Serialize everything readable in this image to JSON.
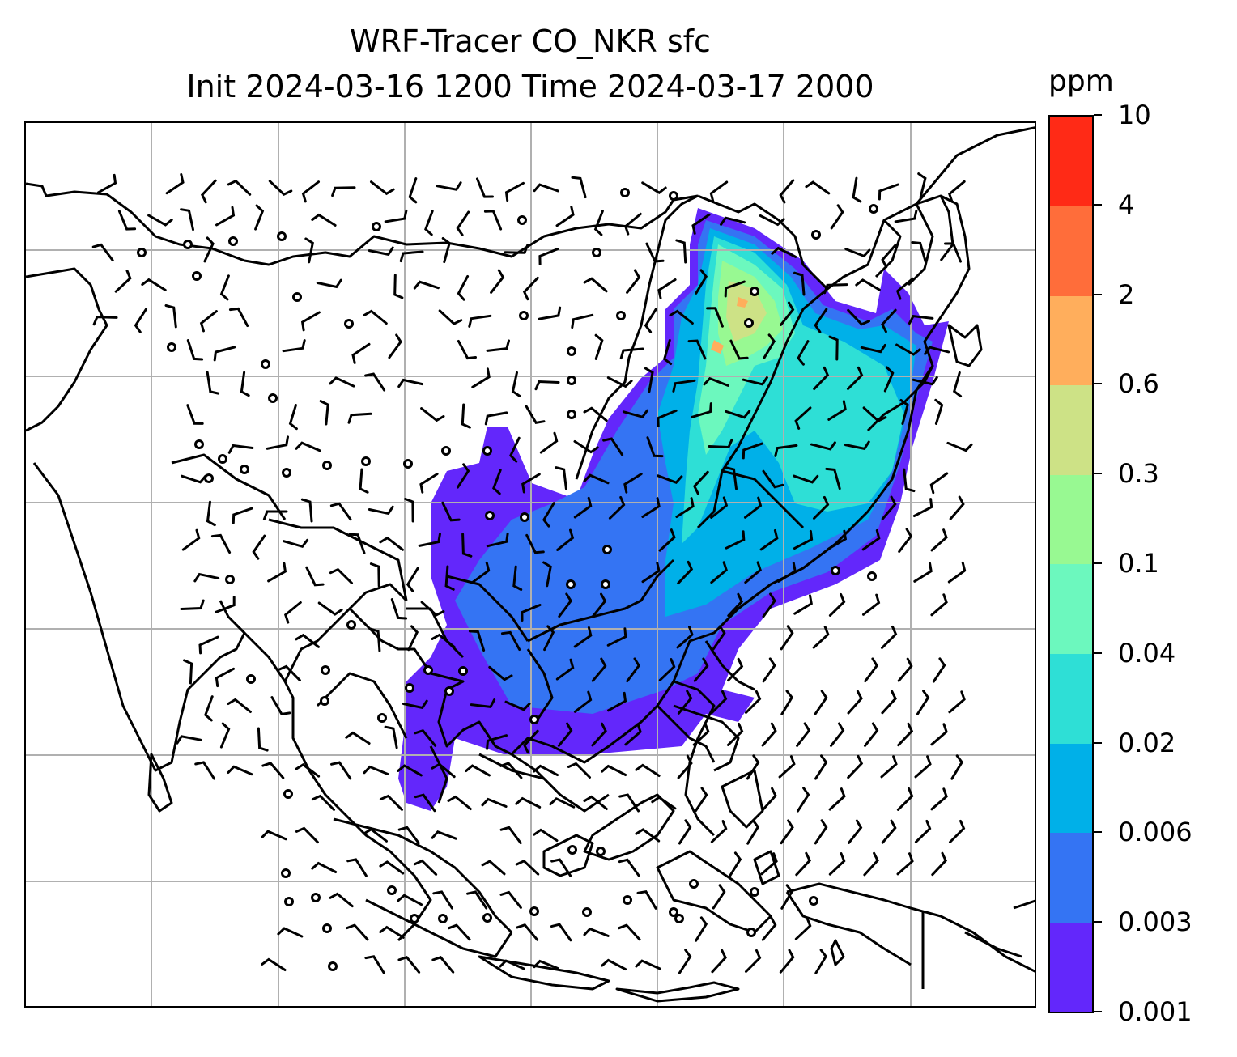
{
  "title": {
    "line1": "WRF-Tracer CO_NKR sfc",
    "line2": "Init 2024-03-16 1200 Time 2024-03-17 2000"
  },
  "colorbar": {
    "unit": "ppm",
    "levels": [
      "0.001",
      "0.003",
      "0.006",
      "0.02",
      "0.04",
      "0.1",
      "0.3",
      "0.6",
      "2",
      "4",
      "10"
    ],
    "colors": [
      "#6327fb",
      "#3474f3",
      "#00b0e8",
      "#2edfd6",
      "#6cf8be",
      "#98f992",
      "#cde286",
      "#ffae5c",
      "#ff6d3a",
      "#ff2a16"
    ]
  },
  "map": {
    "gridlines": true,
    "coastline_color": "#000000",
    "gridline_color": "#b0b0b0",
    "wind_barbs": "black"
  }
}
